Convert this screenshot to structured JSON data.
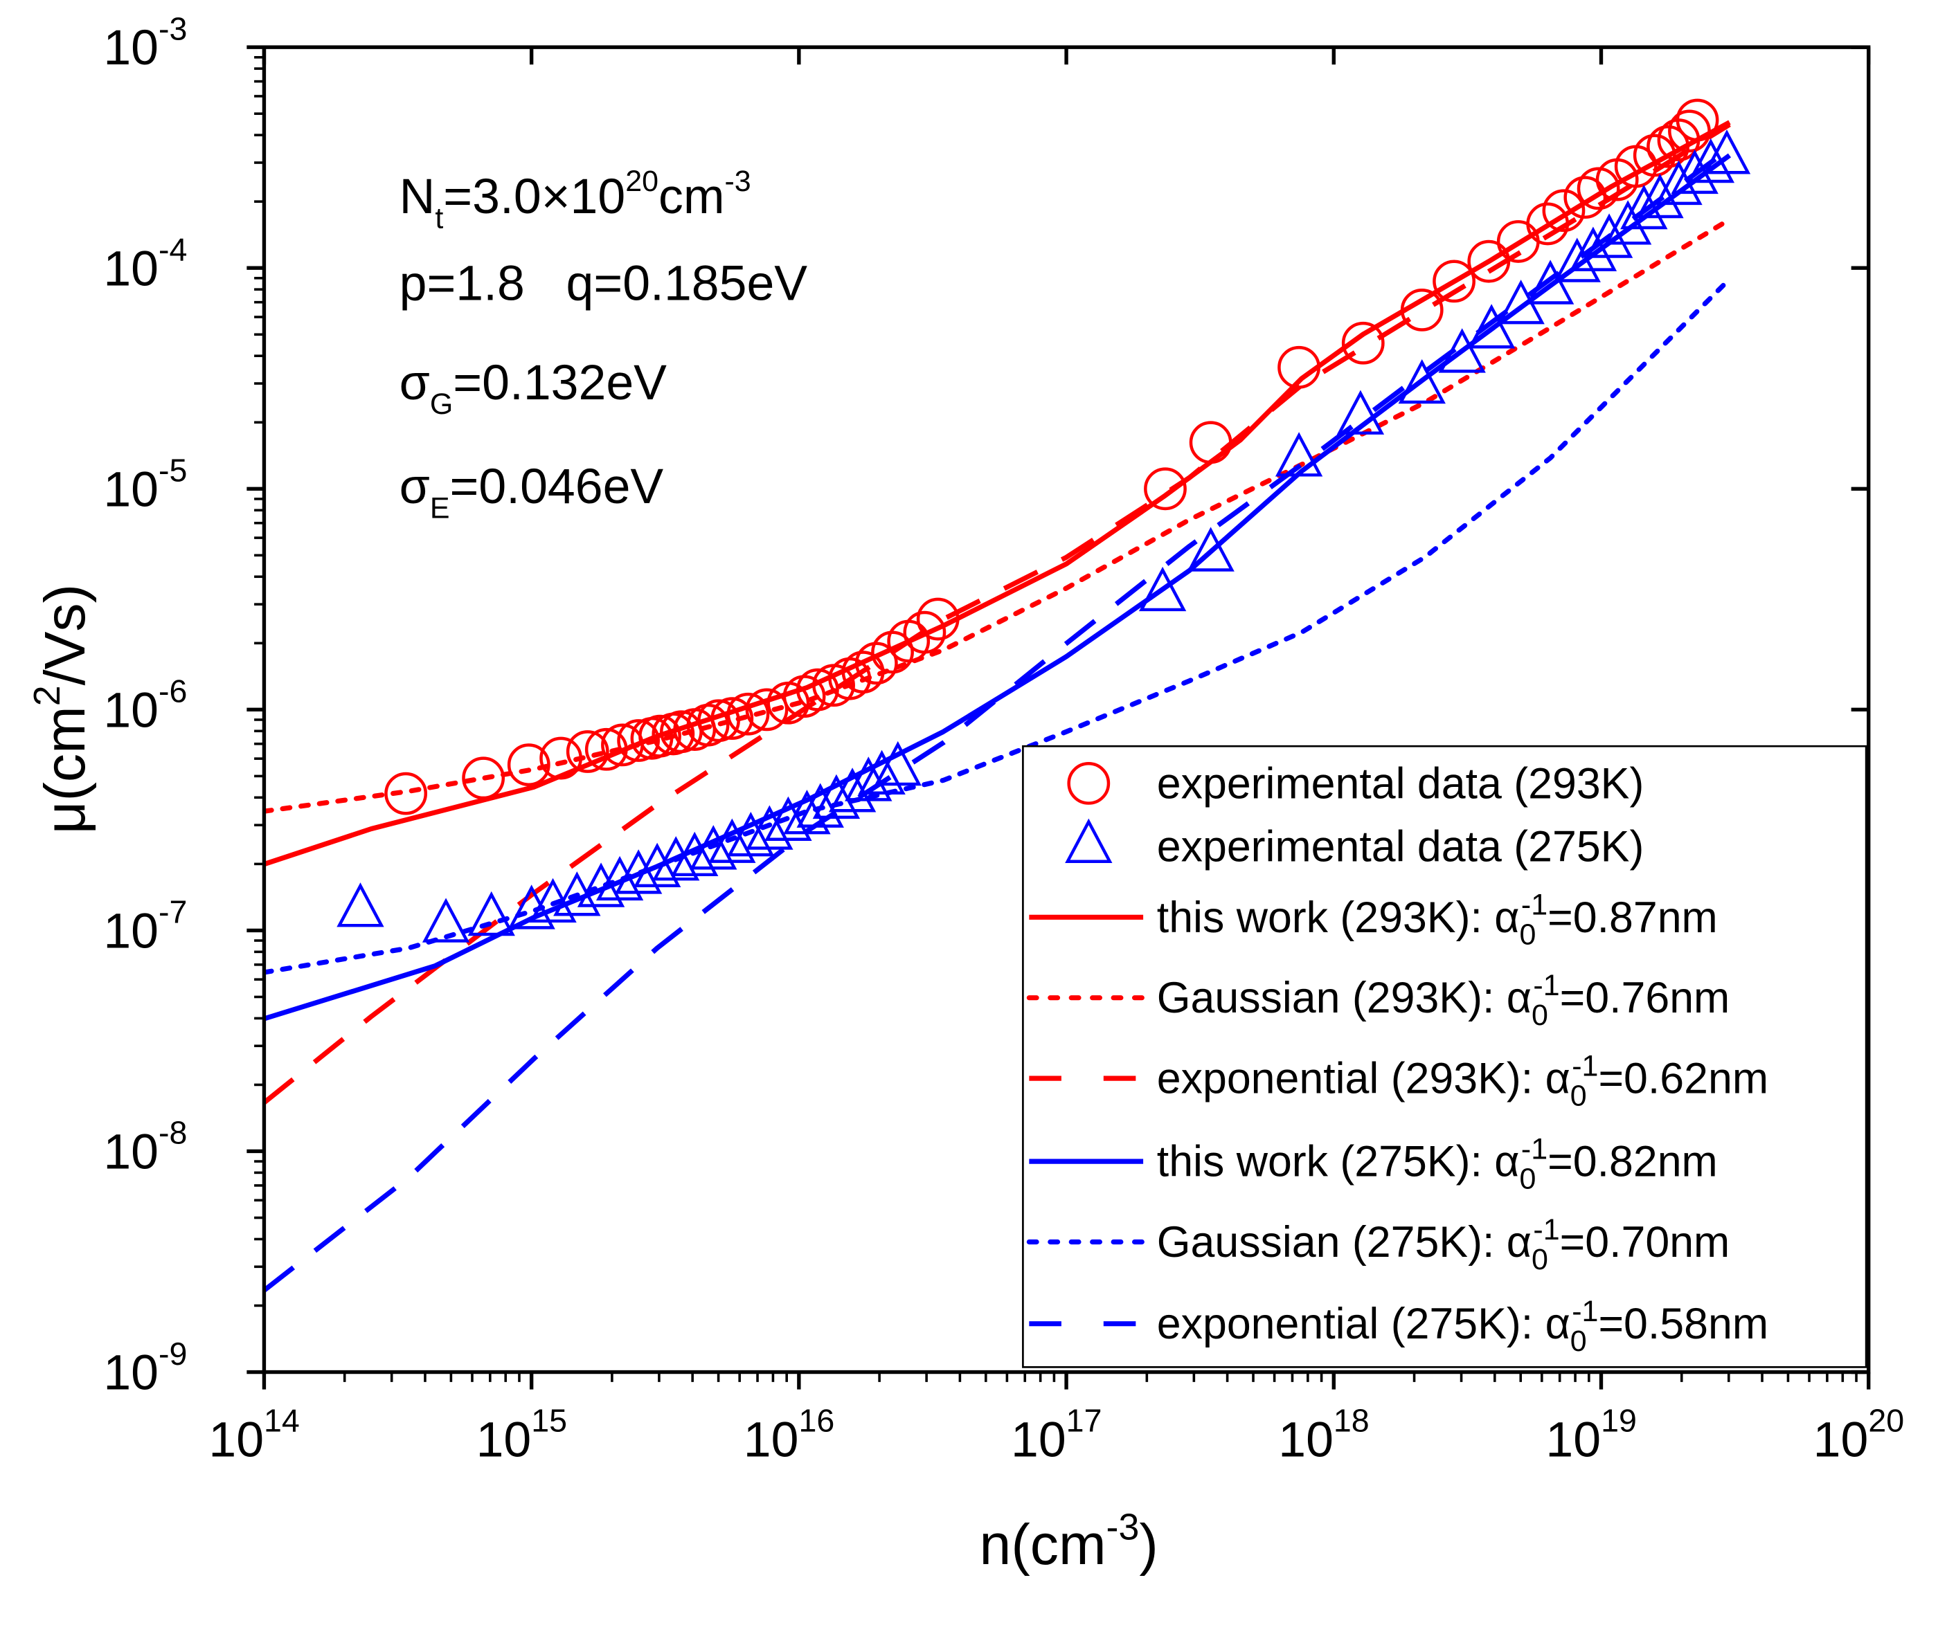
{
  "chart_data": {
    "type": "scatter",
    "scale": {
      "x": "log",
      "y": "log",
      "values_are_log10": true
    },
    "xlabel": {
      "text": "n(cm",
      "sup": "-3",
      "close": ")"
    },
    "ylabel": {
      "text": "μ(cm",
      "sup": "2",
      "rest": "/Vs)"
    },
    "xlim_log10": [
      14,
      20
    ],
    "ylim_log10": [
      -9,
      -3
    ],
    "xticks": [
      {
        "base": "10",
        "exp": "14"
      },
      {
        "base": "10",
        "exp": "15"
      },
      {
        "base": "10",
        "exp": "16"
      },
      {
        "base": "10",
        "exp": "17"
      },
      {
        "base": "10",
        "exp": "18"
      },
      {
        "base": "10",
        "exp": "19"
      },
      {
        "base": "10",
        "exp": "20"
      }
    ],
    "yticks": [
      {
        "base": "10",
        "exp": "-9"
      },
      {
        "base": "10",
        "exp": "-8"
      },
      {
        "base": "10",
        "exp": "-7"
      },
      {
        "base": "10",
        "exp": "-6"
      },
      {
        "base": "10",
        "exp": "-5"
      },
      {
        "base": "10",
        "exp": "-4"
      },
      {
        "base": "10",
        "exp": "-3"
      }
    ],
    "grid": false,
    "legend_position": "bottom-right",
    "colors": {
      "red": "#ff0000",
      "blue": "#0000ff"
    },
    "annotations": {
      "nt": {
        "a": "N",
        "a_sub": "t",
        "b": "=3.0×10",
        "b_sup": "20",
        "c": "cm",
        "c_sup": "-3"
      },
      "pq": {
        "text": "p=1.8   q=0.185eV"
      },
      "sg": {
        "a": "σ",
        "a_sub": "G",
        "b": "=0.132eV"
      },
      "se": {
        "a": "σ",
        "a_sub": "E",
        "b": "=0.046eV"
      }
    },
    "series": [
      {
        "name": "experimental data (293K)",
        "kind": "circle",
        "color": "#ff0000",
        "legend": {
          "prefix": "experimental data (293K)"
        },
        "x": [
          14.53,
          14.82,
          14.99,
          15.11,
          15.21,
          15.28,
          15.34,
          15.4,
          15.45,
          15.48,
          15.53,
          15.56,
          15.61,
          15.66,
          15.7,
          15.75,
          15.81,
          15.88,
          15.96,
          16.02,
          16.07,
          16.13,
          16.19,
          16.24,
          16.29,
          16.35,
          16.41,
          16.47,
          16.52,
          17.37,
          17.54,
          17.87,
          18.11,
          18.33,
          18.45,
          18.58,
          18.69,
          18.8,
          18.86,
          18.94,
          18.99,
          19.06,
          19.13,
          19.2,
          19.25,
          19.29,
          19.33,
          19.36
        ],
        "y": [
          -6.38,
          -6.31,
          -6.25,
          -6.22,
          -6.19,
          -6.18,
          -6.16,
          -6.14,
          -6.13,
          -6.12,
          -6.11,
          -6.1,
          -6.09,
          -6.07,
          -6.05,
          -6.04,
          -6.02,
          -6.0,
          -5.97,
          -5.94,
          -5.91,
          -5.89,
          -5.86,
          -5.83,
          -5.79,
          -5.74,
          -5.69,
          -5.65,
          -5.59,
          -5.0,
          -4.79,
          -4.45,
          -4.34,
          -4.19,
          -4.06,
          -3.97,
          -3.88,
          -3.8,
          -3.74,
          -3.68,
          -3.64,
          -3.6,
          -3.54,
          -3.49,
          -3.45,
          -3.42,
          -3.38,
          -3.33
        ]
      },
      {
        "name": "experimental data (275K)",
        "kind": "triangle",
        "color": "#0000ff",
        "legend": {
          "prefix": "experimental data (275K)"
        },
        "x": [
          14.36,
          14.68,
          14.85,
          15.0,
          15.08,
          15.17,
          15.26,
          15.33,
          15.4,
          15.47,
          15.54,
          15.61,
          15.68,
          15.75,
          15.82,
          15.89,
          15.96,
          16.03,
          16.08,
          16.14,
          16.2,
          16.26,
          16.31,
          16.37,
          17.36,
          17.54,
          17.87,
          18.1,
          18.33,
          18.48,
          18.59,
          18.7,
          18.81,
          18.91,
          18.97,
          19.03,
          19.1,
          19.16,
          19.22,
          19.29,
          19.35,
          19.41,
          19.47
        ],
        "y": [
          -6.91,
          -6.98,
          -6.95,
          -6.92,
          -6.89,
          -6.86,
          -6.82,
          -6.79,
          -6.76,
          -6.73,
          -6.7,
          -6.68,
          -6.65,
          -6.62,
          -6.59,
          -6.56,
          -6.52,
          -6.49,
          -6.46,
          -6.42,
          -6.39,
          -6.34,
          -6.31,
          -6.27,
          -5.48,
          -5.3,
          -4.87,
          -4.68,
          -4.54,
          -4.4,
          -4.29,
          -4.18,
          -4.09,
          -3.99,
          -3.94,
          -3.88,
          -3.82,
          -3.75,
          -3.7,
          -3.64,
          -3.59,
          -3.54,
          -3.5
        ]
      },
      {
        "name": "this work (293K)",
        "kind": "solid",
        "color": "#ff0000",
        "legend": {
          "prefix": "this work (293K): α",
          "sub": "0",
          "sup": "-1",
          "value": "=0.87nm"
        },
        "x": [
          14.0,
          14.4,
          15.01,
          15.47,
          16.03,
          16.54,
          17.0,
          17.37,
          17.65,
          17.88,
          18.11,
          18.58,
          19.04,
          19.48
        ],
        "y": [
          -6.7,
          -6.54,
          -6.35,
          -6.12,
          -5.9,
          -5.62,
          -5.34,
          -5.03,
          -4.78,
          -4.5,
          -4.3,
          -3.97,
          -3.63,
          -3.34
        ]
      },
      {
        "name": "Gaussian (293K)",
        "kind": "dotted",
        "color": "#ff0000",
        "legend": {
          "prefix": "Gaussian (293K): α",
          "sub": "0",
          "sup": "-1",
          "value": "=0.76nm"
        },
        "x": [
          14.0,
          14.54,
          15.01,
          15.47,
          16.03,
          16.54,
          17.0,
          17.46,
          17.88,
          18.34,
          18.81,
          19.48
        ],
        "y": [
          -6.46,
          -6.37,
          -6.27,
          -6.14,
          -5.96,
          -5.73,
          -5.45,
          -5.14,
          -4.89,
          -4.61,
          -4.27,
          -3.78
        ]
      },
      {
        "name": "exponential (293K)",
        "kind": "dashed",
        "color": "#ff0000",
        "legend": {
          "prefix": "exponential (293K): α",
          "sub": "0",
          "sup": "-1",
          "value": "=0.62nm"
        },
        "x": [
          14.0,
          14.4,
          15.01,
          15.47,
          16.03,
          16.54,
          17.0,
          17.46,
          17.88,
          18.34,
          19.04,
          19.48
        ],
        "y": [
          -7.78,
          -7.39,
          -6.83,
          -6.43,
          -5.99,
          -5.59,
          -5.31,
          -4.95,
          -4.53,
          -4.19,
          -3.68,
          -3.35
        ]
      },
      {
        "name": "this work (275K)",
        "kind": "solid",
        "color": "#0000ff",
        "legend": {
          "prefix": "this work (275K): α",
          "sub": "0",
          "sup": "-1",
          "value": "=0.82nm"
        },
        "x": [
          14.0,
          14.64,
          15.01,
          15.47,
          16.03,
          16.54,
          17.0,
          17.46,
          17.88,
          18.34,
          18.81,
          19.48
        ],
        "y": [
          -7.4,
          -7.16,
          -6.94,
          -6.71,
          -6.41,
          -6.1,
          -5.76,
          -5.37,
          -4.92,
          -4.5,
          -4.08,
          -3.49
        ]
      },
      {
        "name": "Gaussian (275K)",
        "kind": "dotted",
        "color": "#0000ff",
        "legend": {
          "prefix": "Gaussian (275K): α",
          "sub": "0",
          "sup": "-1",
          "value": "=0.70nm"
        },
        "x": [
          14.0,
          14.54,
          15.01,
          15.47,
          16.03,
          16.54,
          17.0,
          17.46,
          17.88,
          18.34,
          18.81,
          19.48
        ],
        "y": [
          -7.19,
          -7.08,
          -6.91,
          -6.71,
          -6.46,
          -6.32,
          -6.1,
          -5.87,
          -5.65,
          -5.31,
          -4.86,
          -4.05
        ]
      },
      {
        "name": "exponential (275K)",
        "kind": "dashed",
        "color": "#0000ff",
        "legend": {
          "prefix": "exponential (275K): α",
          "sub": "0",
          "sup": "-1",
          "value": "=0.58nm"
        },
        "x": [
          14.0,
          14.54,
          15.01,
          15.47,
          16.03,
          16.54,
          17.0,
          17.46,
          17.88,
          18.34,
          18.81,
          19.48
        ],
        "y": [
          -8.63,
          -8.12,
          -7.58,
          -7.08,
          -6.55,
          -6.15,
          -5.7,
          -5.26,
          -4.89,
          -4.47,
          -4.05,
          -3.46
        ]
      }
    ]
  }
}
